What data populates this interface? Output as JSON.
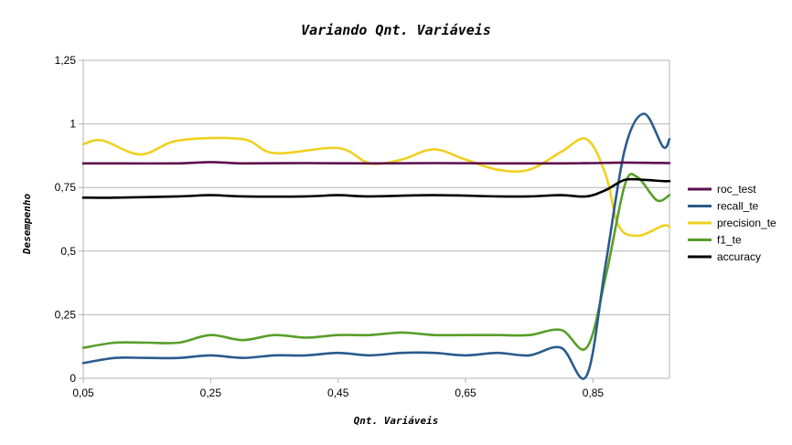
{
  "chart_data": {
    "type": "line",
    "title": "Variando Qnt. Variáveis",
    "xlabel": "Qnt. Variáveis",
    "ylabel": "Desempenho",
    "xlim": [
      0.05,
      0.97
    ],
    "ylim": [
      0,
      1.25
    ],
    "x_ticks": [
      0.05,
      0.25,
      0.45,
      0.65,
      0.85
    ],
    "x_tick_labels": [
      "0,05",
      "0,25",
      "0,45",
      "0,65",
      "0,85"
    ],
    "y_ticks": [
      0,
      0.25,
      0.5,
      0.75,
      1,
      1.25
    ],
    "y_tick_labels": [
      "0",
      "0,25",
      "0,5",
      "0,75",
      "1",
      "1,25"
    ],
    "grid": "horizontal",
    "legend_position": "right",
    "series": [
      {
        "name": "roc_test",
        "color": "#5c0f4c",
        "points": [
          [
            0.05,
            0.845
          ],
          [
            0.1,
            0.845
          ],
          [
            0.2,
            0.845
          ],
          [
            0.25,
            0.85
          ],
          [
            0.3,
            0.845
          ],
          [
            0.4,
            0.846
          ],
          [
            0.5,
            0.845
          ],
          [
            0.6,
            0.846
          ],
          [
            0.7,
            0.845
          ],
          [
            0.8,
            0.845
          ],
          [
            0.85,
            0.846
          ],
          [
            0.9,
            0.848
          ],
          [
            0.97,
            0.846
          ]
        ]
      },
      {
        "name": "recall_te",
        "color": "#2a5b8c",
        "points": [
          [
            0.05,
            0.06
          ],
          [
            0.1,
            0.08
          ],
          [
            0.15,
            0.08
          ],
          [
            0.2,
            0.08
          ],
          [
            0.25,
            0.09
          ],
          [
            0.3,
            0.08
          ],
          [
            0.35,
            0.09
          ],
          [
            0.4,
            0.09
          ],
          [
            0.45,
            0.1
          ],
          [
            0.5,
            0.09
          ],
          [
            0.55,
            0.1
          ],
          [
            0.6,
            0.1
          ],
          [
            0.65,
            0.09
          ],
          [
            0.7,
            0.1
          ],
          [
            0.75,
            0.09
          ],
          [
            0.8,
            0.12
          ],
          [
            0.84,
            0.01
          ],
          [
            0.87,
            0.45
          ],
          [
            0.9,
            0.9
          ],
          [
            0.93,
            1.04
          ],
          [
            0.96,
            0.91
          ],
          [
            0.97,
            0.94
          ]
        ]
      },
      {
        "name": "precision_te",
        "color": "#f0d020",
        "points": [
          [
            0.05,
            0.92
          ],
          [
            0.08,
            0.935
          ],
          [
            0.14,
            0.88
          ],
          [
            0.2,
            0.935
          ],
          [
            0.3,
            0.94
          ],
          [
            0.35,
            0.885
          ],
          [
            0.45,
            0.905
          ],
          [
            0.5,
            0.845
          ],
          [
            0.55,
            0.86
          ],
          [
            0.6,
            0.9
          ],
          [
            0.65,
            0.86
          ],
          [
            0.7,
            0.82
          ],
          [
            0.75,
            0.82
          ],
          [
            0.8,
            0.89
          ],
          [
            0.84,
            0.94
          ],
          [
            0.87,
            0.8
          ],
          [
            0.89,
            0.6
          ],
          [
            0.92,
            0.56
          ],
          [
            0.96,
            0.6
          ],
          [
            0.97,
            0.595
          ]
        ]
      },
      {
        "name": "f1_te",
        "color": "#5a9e2a",
        "points": [
          [
            0.05,
            0.12
          ],
          [
            0.1,
            0.14
          ],
          [
            0.15,
            0.14
          ],
          [
            0.2,
            0.14
          ],
          [
            0.25,
            0.17
          ],
          [
            0.3,
            0.15
          ],
          [
            0.35,
            0.17
          ],
          [
            0.4,
            0.16
          ],
          [
            0.45,
            0.17
          ],
          [
            0.5,
            0.17
          ],
          [
            0.55,
            0.18
          ],
          [
            0.6,
            0.17
          ],
          [
            0.65,
            0.17
          ],
          [
            0.7,
            0.17
          ],
          [
            0.75,
            0.17
          ],
          [
            0.8,
            0.19
          ],
          [
            0.84,
            0.12
          ],
          [
            0.87,
            0.4
          ],
          [
            0.9,
            0.76
          ],
          [
            0.92,
            0.79
          ],
          [
            0.95,
            0.7
          ],
          [
            0.97,
            0.72
          ]
        ]
      },
      {
        "name": "accuracy",
        "color": "#000000",
        "points": [
          [
            0.05,
            0.71
          ],
          [
            0.1,
            0.71
          ],
          [
            0.2,
            0.715
          ],
          [
            0.25,
            0.72
          ],
          [
            0.3,
            0.715
          ],
          [
            0.4,
            0.715
          ],
          [
            0.45,
            0.72
          ],
          [
            0.5,
            0.715
          ],
          [
            0.6,
            0.72
          ],
          [
            0.7,
            0.715
          ],
          [
            0.75,
            0.715
          ],
          [
            0.8,
            0.72
          ],
          [
            0.84,
            0.715
          ],
          [
            0.87,
            0.74
          ],
          [
            0.9,
            0.78
          ],
          [
            0.93,
            0.78
          ],
          [
            0.96,
            0.775
          ],
          [
            0.97,
            0.775
          ]
        ]
      }
    ]
  }
}
